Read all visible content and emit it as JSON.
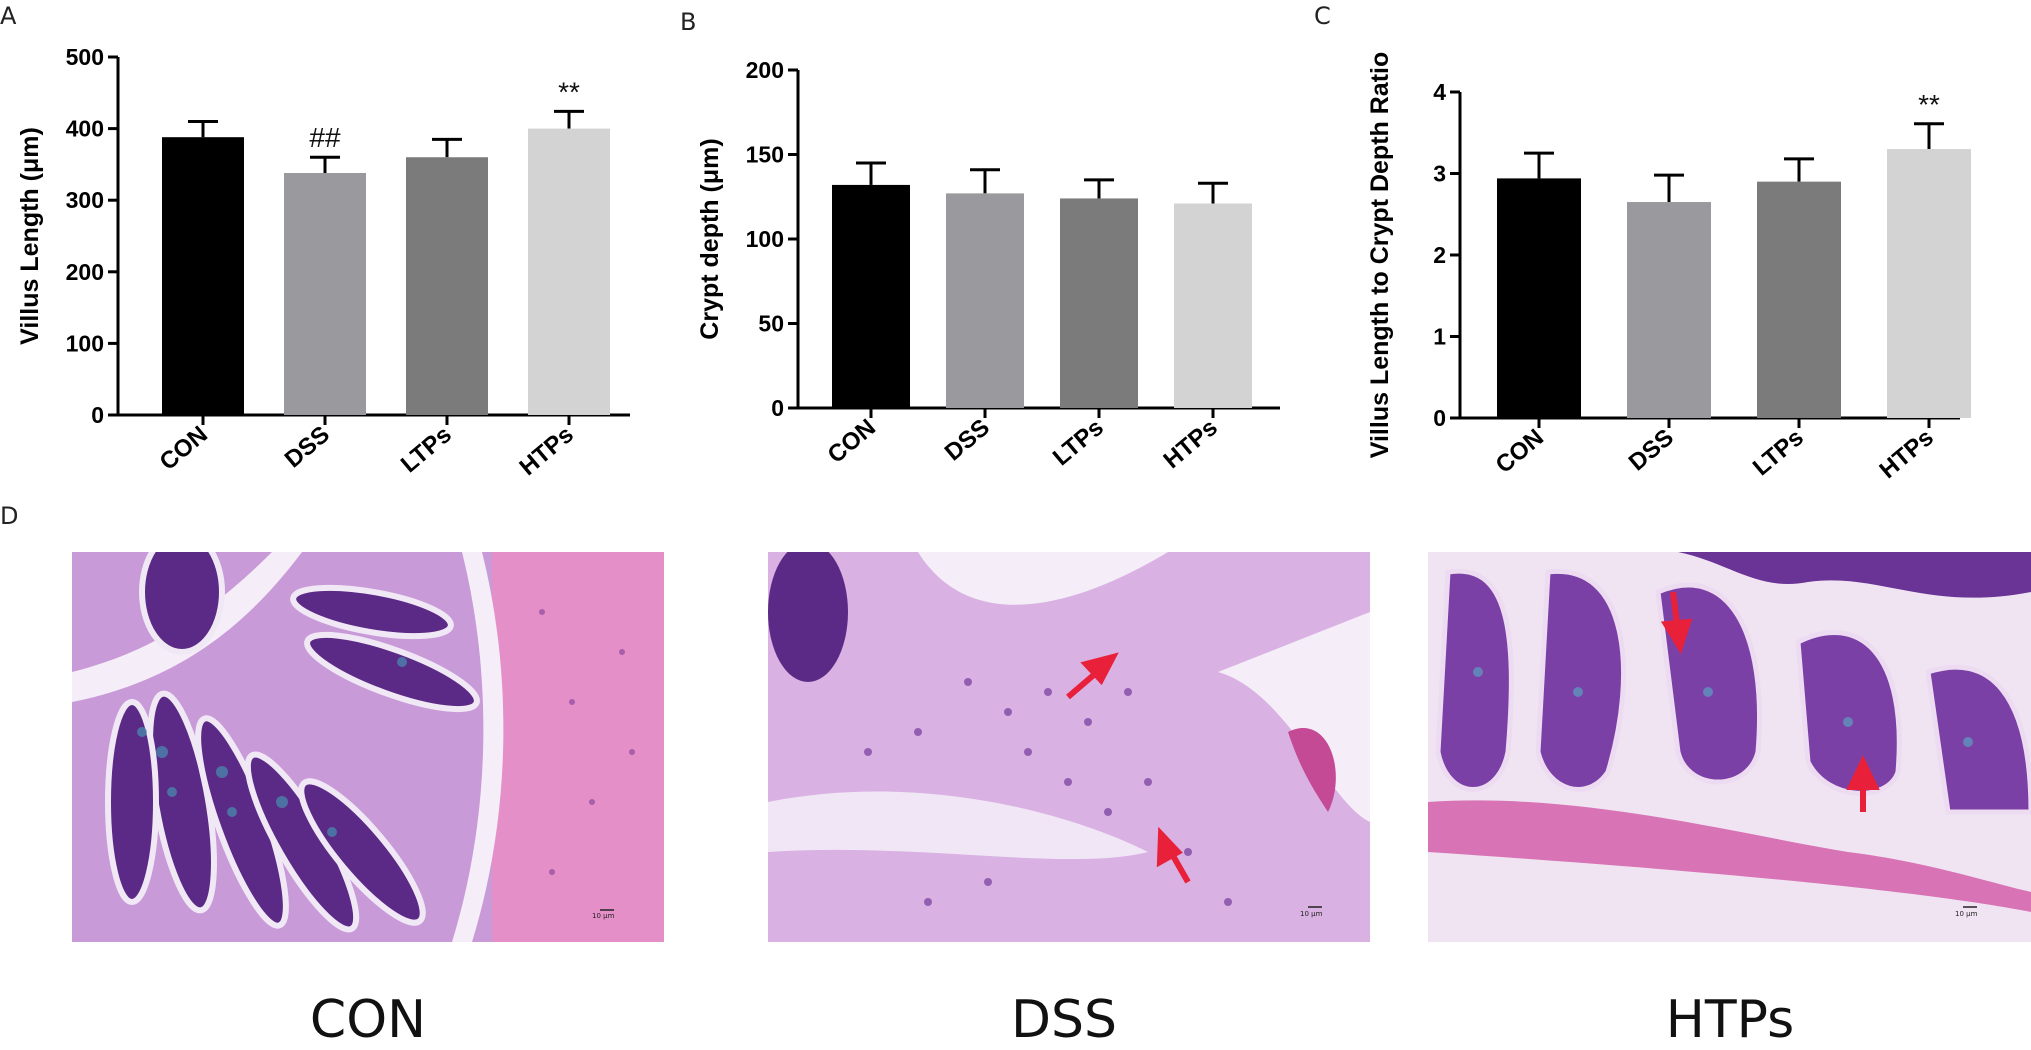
{
  "panels": {
    "a": "A",
    "b": "B",
    "c": "C",
    "d": "D"
  },
  "colors": {
    "CON": "#000000",
    "DSS": "#9a9a9e",
    "LTPs": "#7b7b7b",
    "HTPs": "#d3d3d3",
    "arrow": "#e8203a"
  },
  "chart_data": [
    {
      "type": "bar",
      "panel": "A",
      "categories": [
        "CON",
        "DSS",
        "LTPs",
        "HTPs"
      ],
      "values": [
        388,
        338,
        360,
        400
      ],
      "errors": [
        22,
        22,
        25,
        24
      ],
      "annotations": [
        "",
        "##",
        "",
        "**"
      ],
      "ylabel": "Villus Length (μm)",
      "ylim": [
        0,
        500
      ],
      "yticks": [
        "0",
        "100",
        "200",
        "300",
        "400",
        "500"
      ]
    },
    {
      "type": "bar",
      "panel": "B",
      "categories": [
        "CON",
        "DSS",
        "LTPs",
        "HTPs"
      ],
      "values": [
        132,
        127,
        124,
        121
      ],
      "errors": [
        13,
        14,
        11,
        12
      ],
      "annotations": [
        "",
        "",
        "",
        ""
      ],
      "ylabel": "Crypt depth (μm)",
      "ylim": [
        0,
        200
      ],
      "yticks": [
        "0",
        "50",
        "100",
        "150",
        "200"
      ]
    },
    {
      "type": "bar",
      "panel": "C",
      "categories": [
        "CON",
        "DSS",
        "LTPs",
        "HTPs"
      ],
      "values": [
        2.94,
        2.65,
        2.9,
        3.3
      ],
      "errors": [
        0.31,
        0.33,
        0.28,
        0.31
      ],
      "annotations": [
        "",
        "",
        "",
        "**"
      ],
      "ylabel": "Villus Length to Crypt Depth Ratio",
      "ylim": [
        0,
        4
      ],
      "yticks": [
        "0",
        "1",
        "2",
        "3",
        "4"
      ]
    }
  ],
  "micrographs": [
    {
      "caption": "CON",
      "scale_label": "10 μm"
    },
    {
      "caption": "DSS",
      "scale_label": "10 μm"
    },
    {
      "caption": "HTPs",
      "scale_label": "10 μm"
    }
  ]
}
